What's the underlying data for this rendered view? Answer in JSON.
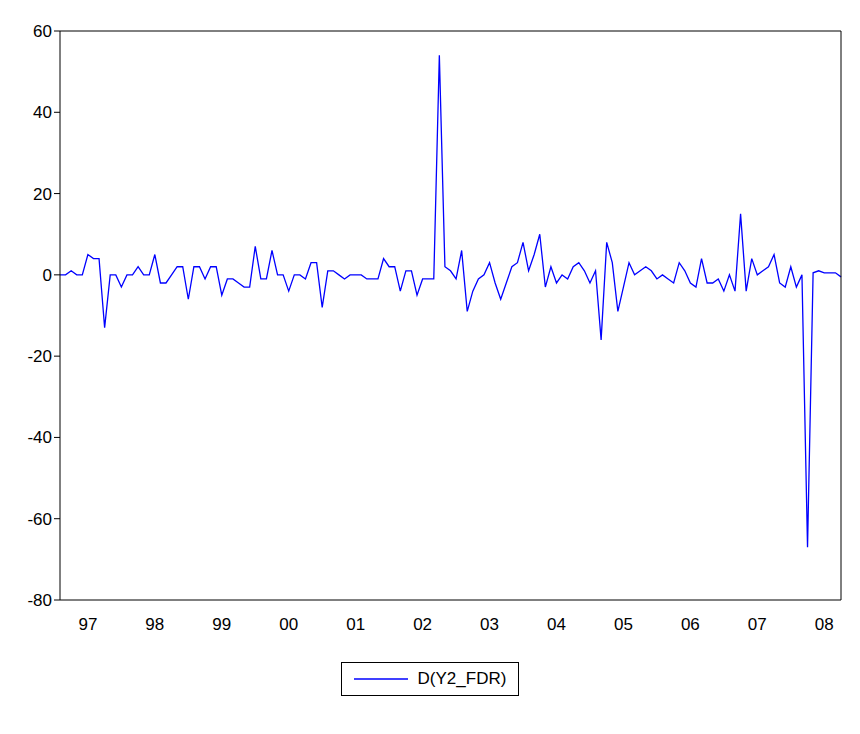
{
  "chart_data": {
    "type": "line",
    "categories": [
      null,
      null,
      null,
      null,
      null,
      "97",
      null,
      null,
      null,
      null,
      null,
      null,
      null,
      null,
      null,
      null,
      null,
      "98",
      null,
      null,
      null,
      null,
      null,
      null,
      null,
      null,
      null,
      null,
      null,
      "99",
      null,
      null,
      null,
      null,
      null,
      null,
      null,
      null,
      null,
      null,
      null,
      "00",
      null,
      null,
      null,
      null,
      null,
      null,
      null,
      null,
      null,
      null,
      null,
      "01",
      null,
      null,
      null,
      null,
      null,
      null,
      null,
      null,
      null,
      null,
      null,
      "02",
      null,
      null,
      null,
      null,
      null,
      null,
      null,
      null,
      null,
      null,
      null,
      "03",
      null,
      null,
      null,
      null,
      null,
      null,
      null,
      null,
      null,
      null,
      null,
      "04",
      null,
      null,
      null,
      null,
      null,
      null,
      null,
      null,
      null,
      null,
      null,
      "05",
      null,
      null,
      null,
      null,
      null,
      null,
      null,
      null,
      null,
      null,
      null,
      "06",
      null,
      null,
      null,
      null,
      null,
      null,
      null,
      null,
      null,
      null,
      null,
      "07",
      null,
      null,
      null,
      null,
      null,
      null,
      null,
      null,
      null,
      null,
      null,
      "08",
      null,
      null,
      null
    ],
    "series": [
      {
        "name": "D(Y2_FDR)",
        "color": "#0000ff",
        "values": [
          0,
          0,
          1,
          0,
          0,
          5,
          4,
          4,
          -13,
          0,
          0,
          -3,
          0,
          0,
          2,
          0,
          0,
          5,
          -2,
          -2,
          0,
          2,
          2,
          -6,
          2,
          2,
          -1,
          2,
          2,
          -5,
          -1,
          -1,
          -2,
          -3,
          -3,
          7,
          -1,
          -1,
          6,
          0,
          0,
          -4,
          0,
          0,
          -1,
          3,
          3,
          -8,
          1,
          1,
          0,
          -1,
          0,
          0,
          0,
          -1,
          -1,
          -1,
          4,
          2,
          2,
          -4,
          1,
          1,
          -5,
          -1,
          -1,
          -1,
          54,
          2,
          1,
          -1,
          6,
          -9,
          -4,
          -1,
          0,
          3,
          -2,
          -6,
          -2,
          2,
          3,
          8,
          1,
          5,
          10,
          -3,
          2,
          -2,
          0,
          -1,
          2,
          3,
          1,
          -2,
          1,
          -16,
          8,
          3,
          -9,
          -3,
          3,
          0,
          1,
          2,
          1,
          -1,
          0,
          -1,
          -2,
          3,
          1,
          -2,
          -3,
          4,
          -2,
          -2,
          -1,
          -4,
          0,
          -4,
          15,
          -4,
          4,
          0,
          1,
          2,
          5,
          -2,
          -3,
          2,
          -3,
          0,
          -67,
          0.5,
          1,
          0.5,
          0.5,
          0.5,
          -0.5
        ]
      }
    ],
    "ylim": [
      -80,
      60
    ],
    "yticks": [
      -80,
      -60,
      -40,
      -20,
      0,
      20,
      40,
      60
    ],
    "grid": false,
    "legend": "bottom"
  }
}
